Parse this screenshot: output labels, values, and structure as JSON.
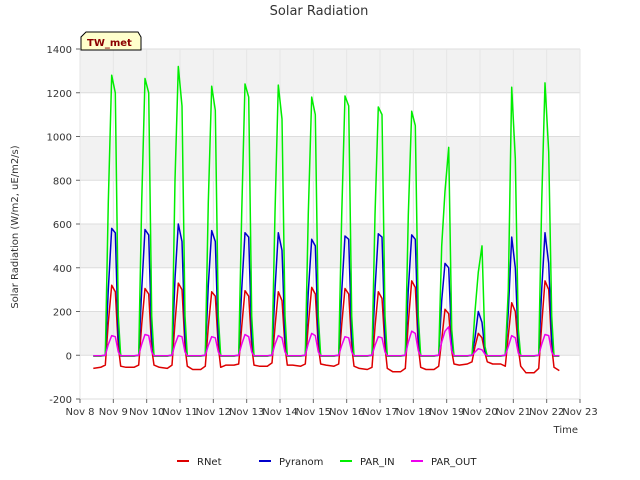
{
  "chart_data": {
    "type": "line",
    "title": "Solar Radiation",
    "xlabel": "Time",
    "ylabel": "Solar Radiation (W/m2, uE/m2/s)",
    "badge": "TW_met",
    "ylim": [
      -200,
      1400
    ],
    "yticks": [
      -200,
      0,
      200,
      400,
      600,
      800,
      1000,
      1200,
      1400
    ],
    "xlim": [
      8,
      23
    ],
    "xticks": [
      {
        "x": 8,
        "label": "Nov 8"
      },
      {
        "x": 9,
        "label": "Nov 9"
      },
      {
        "x": 10,
        "label": "Nov 10"
      },
      {
        "x": 11,
        "label": "Nov 11"
      },
      {
        "x": 12,
        "label": "Nov 12"
      },
      {
        "x": 13,
        "label": "Nov 13"
      },
      {
        "x": 14,
        "label": "Nov 14"
      },
      {
        "x": 15,
        "label": "Nov 15"
      },
      {
        "x": 16,
        "label": "Nov 16"
      },
      {
        "x": 17,
        "label": "Nov 17"
      },
      {
        "x": 18,
        "label": "Nov 18"
      },
      {
        "x": 19,
        "label": "Nov 19"
      },
      {
        "x": 20,
        "label": "Nov 20"
      },
      {
        "x": 21,
        "label": "Nov 21"
      },
      {
        "x": 22,
        "label": "Nov 22"
      },
      {
        "x": 23,
        "label": "Nov 23"
      }
    ],
    "grid": true,
    "legend_position": "bottom",
    "series": [
      {
        "name": "RNet",
        "color": "#dd0000",
        "x": [
          8.4,
          8.62,
          8.76,
          8.85,
          8.95,
          9.06,
          9.15,
          9.22,
          9.38,
          9.62,
          9.76,
          9.85,
          9.95,
          10.06,
          10.15,
          10.22,
          10.38,
          10.62,
          10.76,
          10.85,
          10.95,
          11.06,
          11.15,
          11.22,
          11.38,
          11.62,
          11.76,
          11.85,
          11.95,
          12.06,
          12.15,
          12.22,
          12.38,
          12.62,
          12.76,
          12.85,
          12.95,
          13.06,
          13.15,
          13.22,
          13.38,
          13.62,
          13.76,
          13.85,
          13.95,
          14.06,
          14.15,
          14.22,
          14.38,
          14.62,
          14.76,
          14.85,
          14.95,
          15.06,
          15.15,
          15.22,
          15.38,
          15.62,
          15.76,
          15.85,
          15.95,
          16.06,
          16.15,
          16.22,
          16.38,
          16.62,
          16.76,
          16.85,
          16.95,
          17.06,
          17.15,
          17.22,
          17.38,
          17.62,
          17.76,
          17.85,
          17.95,
          18.06,
          18.15,
          18.22,
          18.38,
          18.62,
          18.76,
          18.85,
          18.95,
          19.06,
          19.15,
          19.22,
          19.38,
          19.62,
          19.76,
          19.85,
          19.95,
          20.06,
          20.15,
          20.22,
          20.38,
          20.62,
          20.76,
          20.85,
          20.95,
          21.06,
          21.15,
          21.22,
          21.38,
          21.62,
          21.76,
          21.85,
          21.95,
          22.06,
          22.15,
          22.22,
          22.38
        ],
        "y": [
          -60,
          -55,
          -45,
          150,
          320,
          290,
          40,
          -50,
          -55,
          -55,
          -45,
          140,
          305,
          280,
          30,
          -45,
          -55,
          -60,
          -45,
          150,
          330,
          300,
          40,
          -50,
          -65,
          -65,
          -50,
          130,
          290,
          270,
          40,
          -55,
          -45,
          -45,
          -40,
          130,
          295,
          270,
          40,
          -45,
          -50,
          -50,
          -35,
          130,
          290,
          250,
          40,
          -45,
          -45,
          -50,
          -40,
          140,
          310,
          280,
          40,
          -40,
          -45,
          -50,
          -40,
          140,
          305,
          280,
          40,
          -50,
          -60,
          -65,
          -55,
          130,
          290,
          260,
          40,
          -60,
          -75,
          -75,
          -60,
          150,
          340,
          310,
          40,
          -55,
          -65,
          -65,
          -50,
          70,
          210,
          190,
          20,
          -40,
          -45,
          -40,
          -30,
          40,
          100,
          80,
          10,
          -30,
          -40,
          -40,
          -50,
          90,
          240,
          200,
          30,
          -50,
          -80,
          -80,
          -60,
          140,
          340,
          300,
          40,
          -55,
          -70
        ]
      },
      {
        "name": "Pyranom",
        "color": "#0000cc",
        "x": [
          8.4,
          8.62,
          8.76,
          8.85,
          8.95,
          9.06,
          9.15,
          9.22,
          9.38,
          9.62,
          9.76,
          9.85,
          9.95,
          10.06,
          10.15,
          10.22,
          10.38,
          10.62,
          10.76,
          10.85,
          10.95,
          11.06,
          11.15,
          11.22,
          11.38,
          11.62,
          11.76,
          11.85,
          11.95,
          12.06,
          12.15,
          12.22,
          12.38,
          12.62,
          12.76,
          12.85,
          12.95,
          13.06,
          13.15,
          13.22,
          13.38,
          13.62,
          13.76,
          13.85,
          13.95,
          14.06,
          14.15,
          14.22,
          14.38,
          14.62,
          14.76,
          14.85,
          14.95,
          15.06,
          15.15,
          15.22,
          15.38,
          15.62,
          15.76,
          15.85,
          15.95,
          16.06,
          16.15,
          16.22,
          16.38,
          16.62,
          16.76,
          16.85,
          16.95,
          17.06,
          17.15,
          17.22,
          17.38,
          17.62,
          17.76,
          17.85,
          17.95,
          18.06,
          18.15,
          18.22,
          18.38,
          18.62,
          18.76,
          18.85,
          18.95,
          19.06,
          19.15,
          19.22,
          19.38,
          19.62,
          19.76,
          19.85,
          19.95,
          20.06,
          20.15,
          20.22,
          20.38,
          20.62,
          20.76,
          20.85,
          20.95,
          21.06,
          21.15,
          21.22,
          21.38,
          21.62,
          21.76,
          21.85,
          21.95,
          22.06,
          22.15,
          22.22,
          22.38
        ],
        "y": [
          -3,
          -3,
          0,
          300,
          580,
          560,
          80,
          -3,
          -3,
          -3,
          0,
          300,
          575,
          550,
          80,
          -3,
          -3,
          -3,
          0,
          350,
          600,
          520,
          80,
          -3,
          -3,
          -3,
          0,
          320,
          570,
          520,
          80,
          -3,
          -3,
          -3,
          0,
          300,
          560,
          540,
          80,
          -3,
          -3,
          -3,
          0,
          300,
          560,
          480,
          80,
          -3,
          -3,
          -3,
          0,
          290,
          530,
          500,
          80,
          -3,
          -3,
          -3,
          0,
          290,
          545,
          530,
          80,
          -3,
          -3,
          -3,
          0,
          300,
          555,
          540,
          80,
          -3,
          -3,
          -3,
          0,
          300,
          550,
          530,
          80,
          -3,
          -3,
          -3,
          0,
          250,
          420,
          400,
          60,
          -3,
          -3,
          -3,
          0,
          80,
          200,
          150,
          20,
          -3,
          -3,
          -3,
          0,
          200,
          540,
          400,
          60,
          -3,
          -3,
          -3,
          0,
          300,
          560,
          420,
          70,
          -3,
          -3
        ]
      },
      {
        "name": "PAR_IN",
        "color": "#00ee00",
        "x": [
          8.4,
          8.62,
          8.76,
          8.85,
          8.95,
          9.06,
          9.15,
          9.22,
          9.38,
          9.62,
          9.76,
          9.85,
          9.95,
          10.06,
          10.15,
          10.22,
          10.38,
          10.62,
          10.76,
          10.85,
          10.95,
          11.06,
          11.15,
          11.22,
          11.38,
          11.62,
          11.76,
          11.85,
          11.95,
          12.06,
          12.15,
          12.22,
          12.38,
          12.62,
          12.76,
          12.85,
          12.95,
          13.06,
          13.15,
          13.22,
          13.38,
          13.62,
          13.76,
          13.85,
          13.95,
          14.06,
          14.15,
          14.22,
          14.38,
          14.62,
          14.76,
          14.85,
          14.95,
          15.06,
          15.15,
          15.22,
          15.38,
          15.62,
          15.76,
          15.85,
          15.95,
          16.06,
          16.15,
          16.22,
          16.38,
          16.62,
          16.76,
          16.85,
          16.95,
          17.06,
          17.15,
          17.22,
          17.38,
          17.62,
          17.76,
          17.85,
          17.95,
          18.06,
          18.15,
          18.22,
          18.38,
          18.62,
          18.76,
          18.85,
          18.95,
          19.06,
          19.15,
          19.22,
          19.38,
          19.62,
          19.76,
          19.85,
          19.95,
          20.06,
          20.15,
          20.22,
          20.38,
          20.62,
          20.76,
          20.85,
          20.95,
          21.06,
          21.15,
          21.22,
          21.38,
          21.62,
          21.76,
          21.85,
          21.95,
          22.06,
          22.15,
          22.22,
          22.38
        ],
        "y": [
          -5,
          -5,
          0,
          700,
          1280,
          1200,
          180,
          -5,
          -5,
          -5,
          0,
          700,
          1265,
          1200,
          180,
          -5,
          -5,
          -5,
          0,
          800,
          1320,
          1140,
          180,
          -5,
          -5,
          -5,
          0,
          700,
          1230,
          1120,
          180,
          -5,
          -5,
          -5,
          0,
          650,
          1240,
          1180,
          180,
          -5,
          -5,
          -5,
          0,
          650,
          1235,
          1080,
          180,
          -5,
          -5,
          -5,
          0,
          650,
          1180,
          1100,
          180,
          -5,
          -5,
          -5,
          0,
          640,
          1185,
          1140,
          180,
          -5,
          -5,
          -5,
          0,
          640,
          1135,
          1100,
          180,
          -5,
          -5,
          -5,
          0,
          640,
          1115,
          1050,
          180,
          -5,
          -5,
          -5,
          0,
          500,
          750,
          950,
          120,
          -5,
          -5,
          -5,
          0,
          200,
          380,
          500,
          40,
          -5,
          -5,
          -5,
          0,
          300,
          1225,
          900,
          120,
          -5,
          -5,
          -5,
          0,
          700,
          1245,
          930,
          180,
          -5,
          -5
        ]
      },
      {
        "name": "PAR_OUT",
        "color": "#ee00ee",
        "x": [
          8.4,
          8.62,
          8.76,
          8.85,
          8.95,
          9.06,
          9.15,
          9.22,
          9.38,
          9.62,
          9.76,
          9.85,
          9.95,
          10.06,
          10.15,
          10.22,
          10.38,
          10.62,
          10.76,
          10.85,
          10.95,
          11.06,
          11.15,
          11.22,
          11.38,
          11.62,
          11.76,
          11.85,
          11.95,
          12.06,
          12.15,
          12.22,
          12.38,
          12.62,
          12.76,
          12.85,
          12.95,
          13.06,
          13.15,
          13.22,
          13.38,
          13.62,
          13.76,
          13.85,
          13.95,
          14.06,
          14.15,
          14.22,
          14.38,
          14.62,
          14.76,
          14.85,
          14.95,
          15.06,
          15.15,
          15.22,
          15.38,
          15.62,
          15.76,
          15.85,
          15.95,
          16.06,
          16.15,
          16.22,
          16.38,
          16.62,
          16.76,
          16.85,
          16.95,
          17.06,
          17.15,
          17.22,
          17.38,
          17.62,
          17.76,
          17.85,
          17.95,
          18.06,
          18.15,
          18.22,
          18.38,
          18.62,
          18.76,
          18.85,
          18.95,
          19.06,
          19.15,
          19.22,
          19.38,
          19.62,
          19.76,
          19.85,
          19.95,
          20.06,
          20.15,
          20.22,
          20.38,
          20.62,
          20.76,
          20.85,
          20.95,
          21.06,
          21.15,
          21.22,
          21.38,
          21.62,
          21.76,
          21.85,
          21.95,
          22.06,
          22.15,
          22.22,
          22.38
        ],
        "y": [
          -2,
          -2,
          0,
          50,
          90,
          85,
          15,
          -2,
          -2,
          -2,
          0,
          50,
          95,
          90,
          15,
          -2,
          -2,
          -2,
          0,
          50,
          90,
          85,
          15,
          -2,
          -2,
          -2,
          0,
          45,
          85,
          80,
          15,
          -2,
          -2,
          -2,
          0,
          50,
          95,
          85,
          15,
          -2,
          -2,
          -2,
          0,
          50,
          90,
          80,
          15,
          -2,
          -2,
          -2,
          0,
          55,
          100,
          90,
          15,
          -2,
          -2,
          -2,
          0,
          45,
          85,
          80,
          15,
          -2,
          -2,
          -2,
          0,
          45,
          85,
          80,
          15,
          -2,
          -2,
          -2,
          0,
          60,
          110,
          100,
          20,
          -2,
          -2,
          -2,
          0,
          60,
          110,
          130,
          20,
          -2,
          -2,
          -2,
          0,
          15,
          30,
          25,
          5,
          -2,
          -2,
          -2,
          0,
          40,
          90,
          80,
          10,
          -2,
          -2,
          -2,
          0,
          50,
          95,
          90,
          15,
          -2,
          -2
        ]
      }
    ]
  }
}
